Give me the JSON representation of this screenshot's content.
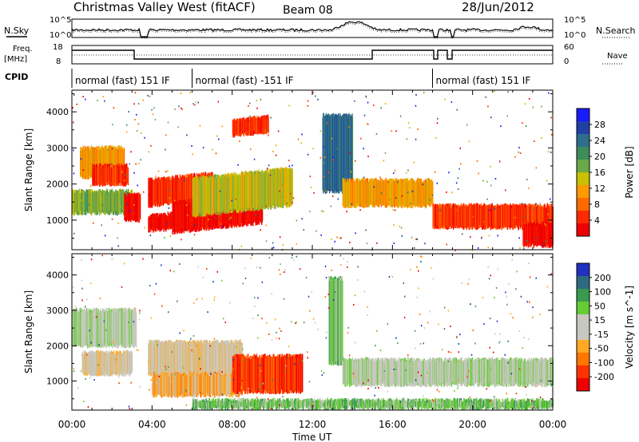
{
  "header": {
    "station": "Christmas Valley West (fitACF)",
    "beam": "Beam 08",
    "date": "28/Jun/2012"
  },
  "strip_labels": {
    "nsky": "N.Sky",
    "nsearch": "N.Search",
    "freq_top": "Freq.",
    "freq_unit": "[MHz]",
    "nave": "Nave",
    "cpid": "CPID",
    "noise_ticks": [
      "10^5",
      "10^0"
    ],
    "noise_ticks_right": [
      "10^5",
      "10^0"
    ],
    "freq_ticks": [
      "18",
      "8"
    ],
    "nave_ticks": [
      "60",
      "0"
    ]
  },
  "cpid_segments": [
    {
      "label": "normal (fast) 151 IF",
      "start_h": 0.0
    },
    {
      "label": "normal (fast) -151 IF",
      "start_h": 6.0
    },
    {
      "label": "normal (fast) 151 IF",
      "start_h": 18.0
    }
  ],
  "colors": {
    "power_scale": [
      "#1a1aff",
      "#2040a8",
      "#2e6e8e",
      "#3c8c5c",
      "#6aa84a",
      "#c8c000",
      "#ff9a00",
      "#ff6a00",
      "#ff2a00",
      "#ee0000"
    ],
    "velocity_scale": [
      "#2030c0",
      "#2d6a80",
      "#3a9a50",
      "#66cc33",
      "#c8c8c0",
      "#c8c8c0",
      "#ffaa22",
      "#ff7700",
      "#ff3300",
      "#ee0000"
    ],
    "axis": "#000000"
  },
  "chart_data": [
    {
      "type": "heatmap",
      "title": "",
      "xlabel": "Time UT",
      "ylabel": "Slant Range [km]",
      "xlim_h": [
        0,
        24
      ],
      "ylim": [
        180,
        4600
      ],
      "x_ticks": [
        "00:00",
        "04:00",
        "08:00",
        "12:00",
        "16:00",
        "20:00",
        "00:00"
      ],
      "y_ticks": [
        1000,
        2000,
        3000,
        4000
      ],
      "colorbar_label": "Power [dB]",
      "colorbar_ticks": [
        "28",
        "24",
        "20",
        "16",
        "12",
        "8",
        "4"
      ],
      "bands": [
        {
          "t0": 0.0,
          "t1": 3.0,
          "r0": 1200,
          "r1": 1800,
          "level": 4
        },
        {
          "t0": 0.4,
          "t1": 2.6,
          "r0": 2200,
          "r1": 3000,
          "level": 6
        },
        {
          "t0": 1.0,
          "t1": 2.8,
          "r0": 2000,
          "r1": 2500,
          "level": 8
        },
        {
          "t0": 2.6,
          "t1": 3.4,
          "r0": 1000,
          "r1": 1700,
          "level": 9
        },
        {
          "t0": 3.8,
          "t1": 7.0,
          "r0": 1400,
          "r1": 2100,
          "level": 8
        },
        {
          "t0": 3.8,
          "t1": 5.8,
          "r0": 700,
          "r1": 1100,
          "level": 9
        },
        {
          "t0": 5.0,
          "t1": 9.5,
          "r0": 600,
          "r1": 1400,
          "level": 9
        },
        {
          "t0": 6.0,
          "t1": 11.0,
          "r0": 1000,
          "r1": 2000,
          "level": 5
        },
        {
          "t0": 8.0,
          "t1": 9.8,
          "r0": 3100,
          "r1": 3500,
          "level": 8
        },
        {
          "t0": 12.5,
          "t1": 14.0,
          "r0": 1800,
          "r1": 3900,
          "level": 2
        },
        {
          "t0": 13.5,
          "t1": 18.0,
          "r0": 1400,
          "r1": 2100,
          "level": 6
        },
        {
          "t0": 18.0,
          "t1": 24.0,
          "r0": 800,
          "r1": 1400,
          "level": 8
        },
        {
          "t0": 22.5,
          "t1": 24.0,
          "r0": 300,
          "r1": 900,
          "level": 9
        }
      ]
    },
    {
      "type": "heatmap",
      "title": "",
      "xlabel": "Time UT",
      "ylabel": "Slant Range [km]",
      "xlim_h": [
        0,
        24
      ],
      "ylim": [
        180,
        4600
      ],
      "x_ticks": [
        "00:00",
        "04:00",
        "08:00",
        "12:00",
        "16:00",
        "20:00",
        "00:00"
      ],
      "y_ticks": [
        1000,
        2000,
        3000,
        4000
      ],
      "colorbar_label": "Velocity [m s^-1]",
      "colorbar_ticks": [
        "200",
        "100",
        "50",
        "15",
        "-15",
        "-50",
        "-100",
        "-200"
      ],
      "bands": [
        {
          "t0": 0.0,
          "t1": 3.2,
          "r0": 2000,
          "r1": 3000,
          "level": 4
        },
        {
          "t0": 0.5,
          "t1": 3.0,
          "r0": 1200,
          "r1": 1800,
          "level": 5
        },
        {
          "t0": 3.8,
          "t1": 8.5,
          "r0": 1200,
          "r1": 2100,
          "level": 5
        },
        {
          "t0": 4.0,
          "t1": 8.5,
          "r0": 600,
          "r1": 1200,
          "level": 6
        },
        {
          "t0": 8.0,
          "t1": 11.5,
          "r0": 700,
          "r1": 1700,
          "level": 8
        },
        {
          "t0": 12.8,
          "t1": 13.5,
          "r0": 1500,
          "r1": 3900,
          "level": 3
        },
        {
          "t0": 13.5,
          "t1": 24.0,
          "r0": 900,
          "r1": 1600,
          "level": 4
        },
        {
          "t0": 6.0,
          "t1": 24.0,
          "r0": 250,
          "r1": 450,
          "level": 3
        }
      ]
    }
  ]
}
